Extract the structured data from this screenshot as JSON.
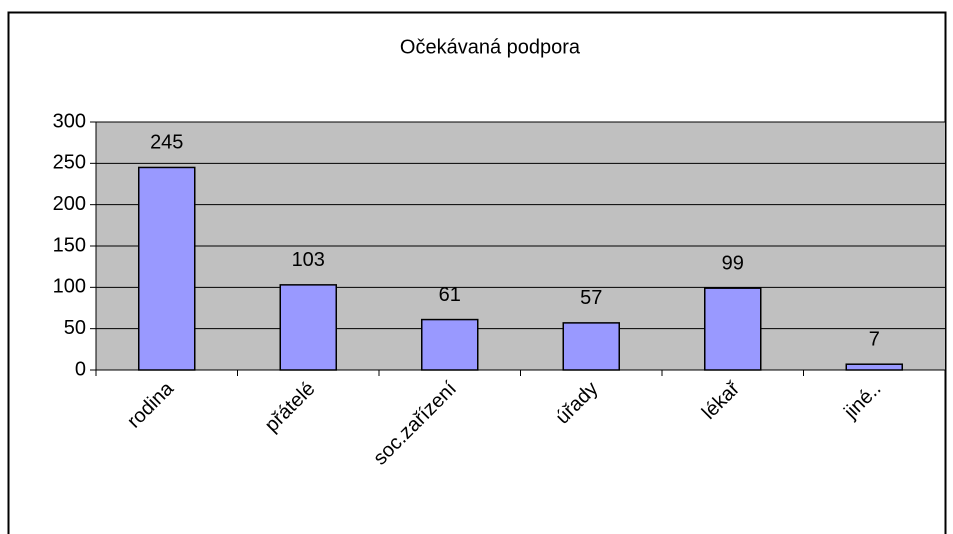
{
  "chart_data": {
    "type": "bar",
    "title": "Očekávaná podpora",
    "categories": [
      "rodina",
      "přátelé",
      "soc.zařízení",
      "úřady",
      "lékař",
      "jiné.."
    ],
    "values": [
      245,
      103,
      61,
      57,
      99,
      7
    ],
    "color": "#9999ff",
    "ylim": [
      0,
      300
    ],
    "yticks": [
      0,
      50,
      100,
      150,
      200,
      250,
      300
    ],
    "grid": true
  }
}
